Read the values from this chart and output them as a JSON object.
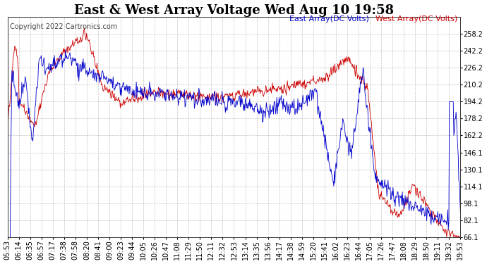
{
  "title": "East & West Array Voltage Wed Aug 10 19:58",
  "copyright": "Copyright 2022 Cartronics.com",
  "legend_east": "East Array(DC Volts)",
  "legend_west": "West Array(DC Volts)",
  "east_color": "#0000cc",
  "west_color": "#cc0000",
  "plot_bg_color": "#ffffff",
  "fig_bg_color": "#ffffff",
  "grid_color": "#aaaaaa",
  "ylim": [
    66.1,
    274.2
  ],
  "yticks": [
    66.1,
    82.1,
    98.1,
    114.1,
    130.1,
    146.1,
    162.2,
    178.2,
    194.2,
    210.2,
    226.2,
    242.2,
    258.2
  ],
  "x_labels": [
    "05:53",
    "06:14",
    "06:35",
    "06:57",
    "07:17",
    "07:38",
    "07:58",
    "08:20",
    "08:41",
    "09:00",
    "09:23",
    "09:44",
    "10:05",
    "10:26",
    "10:47",
    "11:08",
    "11:29",
    "11:50",
    "12:11",
    "12:32",
    "12:53",
    "13:14",
    "13:35",
    "13:56",
    "14:17",
    "14:38",
    "14:59",
    "15:20",
    "15:41",
    "16:02",
    "16:23",
    "16:44",
    "17:05",
    "17:26",
    "17:47",
    "18:08",
    "18:29",
    "18:50",
    "19:11",
    "19:32",
    "19:53"
  ],
  "title_fontsize": 13,
  "tick_fontsize": 7,
  "copyright_fontsize": 7,
  "legend_fontsize": 8
}
